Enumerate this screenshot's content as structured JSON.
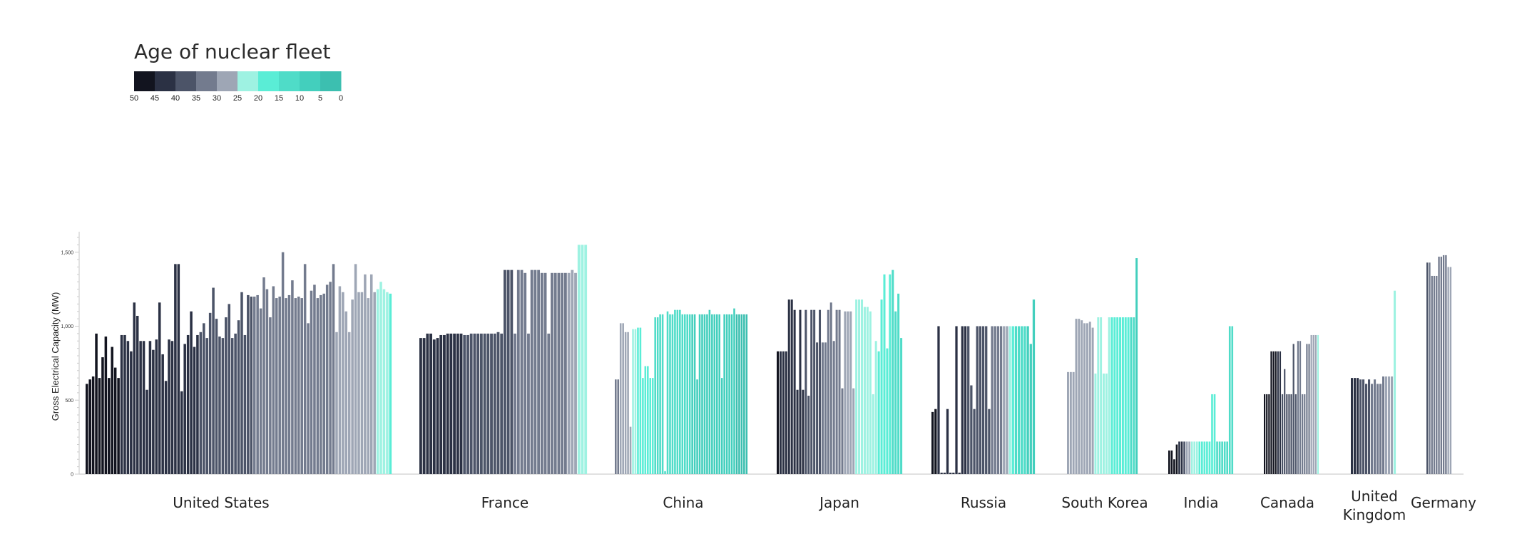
{
  "chart_data": {
    "type": "bar",
    "title": "Age of nuclear fleet",
    "ylabel": "Gross Electrical Capacity (MW)",
    "xlabel": "",
    "ylim": [
      0,
      1600
    ],
    "yticks": [
      0,
      500,
      1000,
      1500
    ],
    "ytick_labels": [
      "0",
      "500",
      "1,000",
      "1,500"
    ],
    "legend": {
      "placement": "top-left",
      "tick_labels": [
        "50",
        "45",
        "40",
        "35",
        "30",
        "25",
        "20",
        "15",
        "10",
        "5",
        "0"
      ],
      "colors": [
        "#12141f",
        "#2b3144",
        "#4c5468",
        "#737b8e",
        "#9ea6b5",
        "#9ef2e2",
        "#5aedd6",
        "#4fdcc8",
        "#43cfbd",
        "#3cbfb0"
      ]
    },
    "groups": [
      {
        "name": "United States",
        "label_lines": [
          "United States"
        ],
        "values": [
          610,
          640,
          660,
          950,
          650,
          790,
          930,
          650,
          860,
          720,
          650,
          940,
          940,
          900,
          830,
          1160,
          1070,
          900,
          900,
          570,
          900,
          840,
          910,
          1160,
          810,
          630,
          910,
          900,
          1420,
          1420,
          560,
          880,
          940,
          1100,
          860,
          940,
          960,
          1020,
          920,
          1090,
          1260,
          1050,
          930,
          920,
          1060,
          1150,
          920,
          950,
          1040,
          1230,
          940,
          1210,
          1200,
          1200,
          1210,
          1120,
          1330,
          1250,
          1060,
          1270,
          1190,
          1200,
          1500,
          1190,
          1210,
          1310,
          1190,
          1200,
          1190,
          1420,
          1020,
          1240,
          1280,
          1190,
          1210,
          1220,
          1280,
          1300,
          1420,
          960,
          1270,
          1230,
          1100,
          960,
          1180,
          1420,
          1230,
          1230,
          1350,
          1190,
          1350,
          1230,
          1250,
          1300,
          1250,
          1230,
          1220
        ],
        "ages": [
          47,
          47,
          47,
          46,
          46,
          46,
          46,
          45,
          45,
          45,
          45,
          44,
          44,
          44,
          44,
          43,
          43,
          43,
          43,
          42,
          42,
          42,
          42,
          42,
          41,
          41,
          41,
          41,
          41,
          41,
          40,
          40,
          40,
          40,
          40,
          40,
          39,
          39,
          39,
          39,
          39,
          39,
          38,
          38,
          38,
          38,
          37,
          37,
          36,
          36,
          35,
          35,
          35,
          34,
          34,
          34,
          33,
          33,
          33,
          33,
          32,
          32,
          32,
          32,
          32,
          32,
          31,
          31,
          31,
          31,
          31,
          31,
          30,
          30,
          30,
          30,
          30,
          30,
          30,
          29,
          29,
          28,
          28,
          28,
          28,
          27,
          27,
          27,
          26,
          26,
          25,
          25,
          24,
          23,
          22,
          20,
          16
        ]
      },
      {
        "name": "France",
        "label_lines": [
          "France"
        ],
        "values": [
          920,
          920,
          950,
          950,
          910,
          920,
          940,
          940,
          950,
          950,
          950,
          950,
          950,
          940,
          940,
          950,
          950,
          950,
          950,
          950,
          950,
          950,
          950,
          960,
          950,
          1380,
          1380,
          1380,
          950,
          1380,
          1380,
          1360,
          950,
          1380,
          1380,
          1380,
          1360,
          1360,
          950,
          1360,
          1360,
          1360,
          1360,
          1360,
          1360,
          1380,
          1360,
          1550,
          1550,
          1550
        ],
        "ages": [
          44,
          43,
          43,
          42,
          42,
          42,
          41,
          41,
          41,
          40,
          40,
          40,
          40,
          39,
          39,
          39,
          38,
          38,
          38,
          38,
          37,
          37,
          36,
          36,
          36,
          35,
          35,
          35,
          34,
          34,
          34,
          34,
          33,
          33,
          33,
          33,
          32,
          32,
          32,
          31,
          31,
          30,
          30,
          30,
          29,
          28,
          27,
          21,
          20,
          20
        ]
      },
      {
        "name": "China",
        "label_lines": [
          "China"
        ],
        "values": [
          640,
          640,
          1020,
          1020,
          960,
          960,
          320,
          980,
          980,
          990,
          990,
          650,
          730,
          730,
          650,
          650,
          1060,
          1060,
          1080,
          1080,
          20,
          1100,
          1080,
          1080,
          1110,
          1110,
          1110,
          1080,
          1080,
          1080,
          1080,
          1080,
          1080,
          640,
          1080,
          1080,
          1080,
          1080,
          1110,
          1080,
          1080,
          1080,
          1080,
          650,
          1080,
          1080,
          1080,
          1080,
          1120,
          1080,
          1080,
          1080,
          1080,
          1080
        ],
        "ages": [
          31,
          31,
          28,
          28,
          26,
          26,
          25,
          20,
          20,
          18,
          18,
          16,
          16,
          16,
          16,
          15,
          14,
          14,
          14,
          13,
          13,
          12,
          12,
          12,
          12,
          11,
          11,
          11,
          10,
          10,
          10,
          9,
          9,
          9,
          9,
          8,
          8,
          8,
          8,
          7,
          7,
          7,
          7,
          6,
          6,
          6,
          5,
          5,
          5,
          4,
          3,
          3,
          2,
          1
        ]
      },
      {
        "name": "Japan",
        "label_lines": [
          "Japan"
        ],
        "values": [
          830,
          830,
          830,
          830,
          1180,
          1180,
          1110,
          570,
          1110,
          570,
          1110,
          530,
          1110,
          1110,
          890,
          1110,
          890,
          890,
          1110,
          1160,
          900,
          1110,
          1110,
          580,
          1100,
          1100,
          1100,
          580,
          1180,
          1180,
          1180,
          1130,
          1130,
          1100,
          540,
          900,
          830,
          1180,
          1350,
          850,
          1350,
          1380,
          1100,
          1220,
          920
        ],
        "ages": [
          45,
          44,
          44,
          44,
          42,
          41,
          41,
          40,
          40,
          40,
          39,
          38,
          37,
          37,
          36,
          35,
          34,
          34,
          33,
          33,
          33,
          32,
          31,
          30,
          29,
          28,
          28,
          27,
          24,
          23,
          23,
          22,
          22,
          21,
          20,
          20,
          19,
          18,
          17,
          17,
          16,
          14,
          13,
          12,
          11
        ]
      },
      {
        "name": "Russia",
        "label_lines": [
          "Russia"
        ],
        "values": [
          420,
          440,
          1000,
          10,
          10,
          440,
          10,
          10,
          1000,
          10,
          1000,
          1000,
          1000,
          600,
          440,
          1000,
          1000,
          1000,
          1000,
          440,
          1000,
          1000,
          1000,
          1000,
          1000,
          1000,
          1000,
          1000,
          1000,
          1000,
          1000,
          1000,
          1000,
          880,
          1180
        ],
        "ages": [
          46,
          45,
          44,
          44,
          44,
          44,
          43,
          42,
          41,
          41,
          40,
          40,
          39,
          38,
          38,
          37,
          37,
          36,
          36,
          35,
          34,
          33,
          31,
          30,
          29,
          27,
          20,
          15,
          13,
          12,
          11,
          10,
          9,
          8,
          6
        ]
      },
      {
        "name": "South Korea",
        "label_lines": [
          "South Korea"
        ],
        "values": [
          690,
          690,
          690,
          1050,
          1050,
          1040,
          1020,
          1020,
          1030,
          990,
          680,
          1060,
          1060,
          680,
          680,
          1060,
          1060,
          1060,
          1060,
          1060,
          1060,
          1060,
          1060,
          1060,
          1060,
          1460
        ],
        "ages": [
          29,
          29,
          29,
          28,
          28,
          27,
          27,
          26,
          26,
          25,
          22,
          21,
          21,
          20,
          20,
          20,
          19,
          18,
          17,
          17,
          16,
          16,
          15,
          14,
          14,
          5
        ]
      },
      {
        "name": "India",
        "label_lines": [
          "India"
        ],
        "values": [
          160,
          160,
          100,
          200,
          220,
          220,
          220,
          220,
          220,
          220,
          220,
          220,
          220,
          220,
          220,
          220,
          220,
          540,
          540,
          220,
          220,
          220,
          220,
          220,
          1000,
          1000
        ],
        "ages": [
          49,
          49,
          47,
          45,
          43,
          41,
          38,
          25,
          25,
          22,
          20,
          20,
          19,
          18,
          18,
          17,
          16,
          16,
          15,
          14,
          14,
          13,
          12,
          12,
          11,
          10
        ]
      },
      {
        "name": "Canada",
        "label_lines": [
          "Canada"
        ],
        "values": [
          540,
          540,
          540,
          830,
          830,
          830,
          830,
          830,
          540,
          710,
          540,
          540,
          540,
          880,
          540,
          900,
          900,
          540,
          540,
          880,
          880,
          940,
          940,
          940,
          940
        ],
        "ages": [
          49,
          48,
          48,
          47,
          46,
          45,
          44,
          43,
          39,
          38,
          37,
          36,
          36,
          35,
          35,
          34,
          33,
          32,
          32,
          31,
          31,
          29,
          28,
          25,
          23
        ]
      },
      {
        "name": "United Kingdom",
        "label_lines": [
          "United",
          "Kingdom"
        ],
        "values": [
          650,
          650,
          650,
          640,
          640,
          610,
          640,
          610,
          640,
          610,
          610,
          660,
          660,
          660,
          660,
          1240
        ],
        "ages": [
          43,
          42,
          41,
          39,
          38,
          36,
          35,
          34,
          33,
          32,
          31,
          30,
          29,
          28,
          27,
          22
        ]
      },
      {
        "name": "Germany",
        "label_lines": [
          "Germany"
        ],
        "values": [
          1430,
          1430,
          1340,
          1340,
          1340,
          1470,
          1470,
          1480,
          1480,
          1400,
          1400
        ],
        "ages": [
          35,
          34,
          34,
          33,
          33,
          32,
          31,
          30,
          30,
          29,
          28
        ]
      }
    ]
  }
}
